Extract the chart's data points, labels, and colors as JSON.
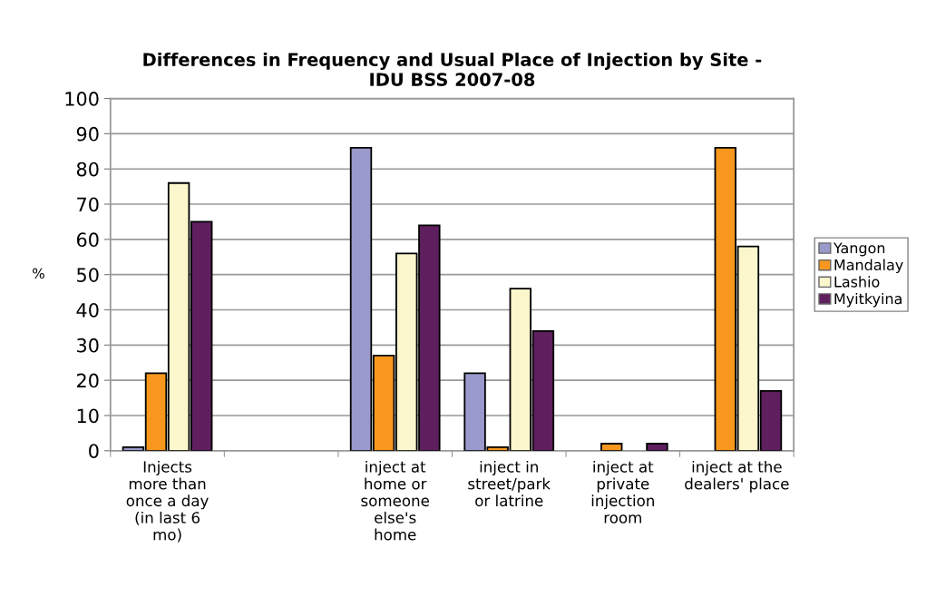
{
  "chart_data": {
    "type": "bar",
    "title": "Differences in Frequency and Usual Place of Injection by Site -\nIDU BSS 2007-08",
    "ylabel": "%",
    "categories": [
      "Injects\nmore than\nonce a day\n(in last 6\nmo)",
      null,
      "inject at\nhome or\nsomeone\nelse's\nhome",
      "inject in\nstreet/park\nor latrine",
      "inject at\nprivate\ninjection\nroom",
      "inject at the\ndealers' place"
    ],
    "series": [
      {
        "name": "Yangon",
        "color": "#9999cc",
        "values": [
          1,
          null,
          86,
          22,
          null,
          null
        ]
      },
      {
        "name": "Mandalay",
        "color": "#f7971e",
        "values": [
          22,
          null,
          27,
          1,
          2,
          86
        ]
      },
      {
        "name": "Lashio",
        "color": "#fbf6cc",
        "values": [
          76,
          null,
          56,
          46,
          null,
          58
        ]
      },
      {
        "name": "Myitkyina",
        "color": "#5f1f5f",
        "values": [
          65,
          null,
          64,
          34,
          2,
          17
        ]
      }
    ],
    "ylim": [
      0,
      100
    ],
    "yticks": [
      0,
      10,
      20,
      30,
      40,
      50,
      60,
      70,
      80,
      90,
      100
    ],
    "grid": "y",
    "legend": "right"
  }
}
